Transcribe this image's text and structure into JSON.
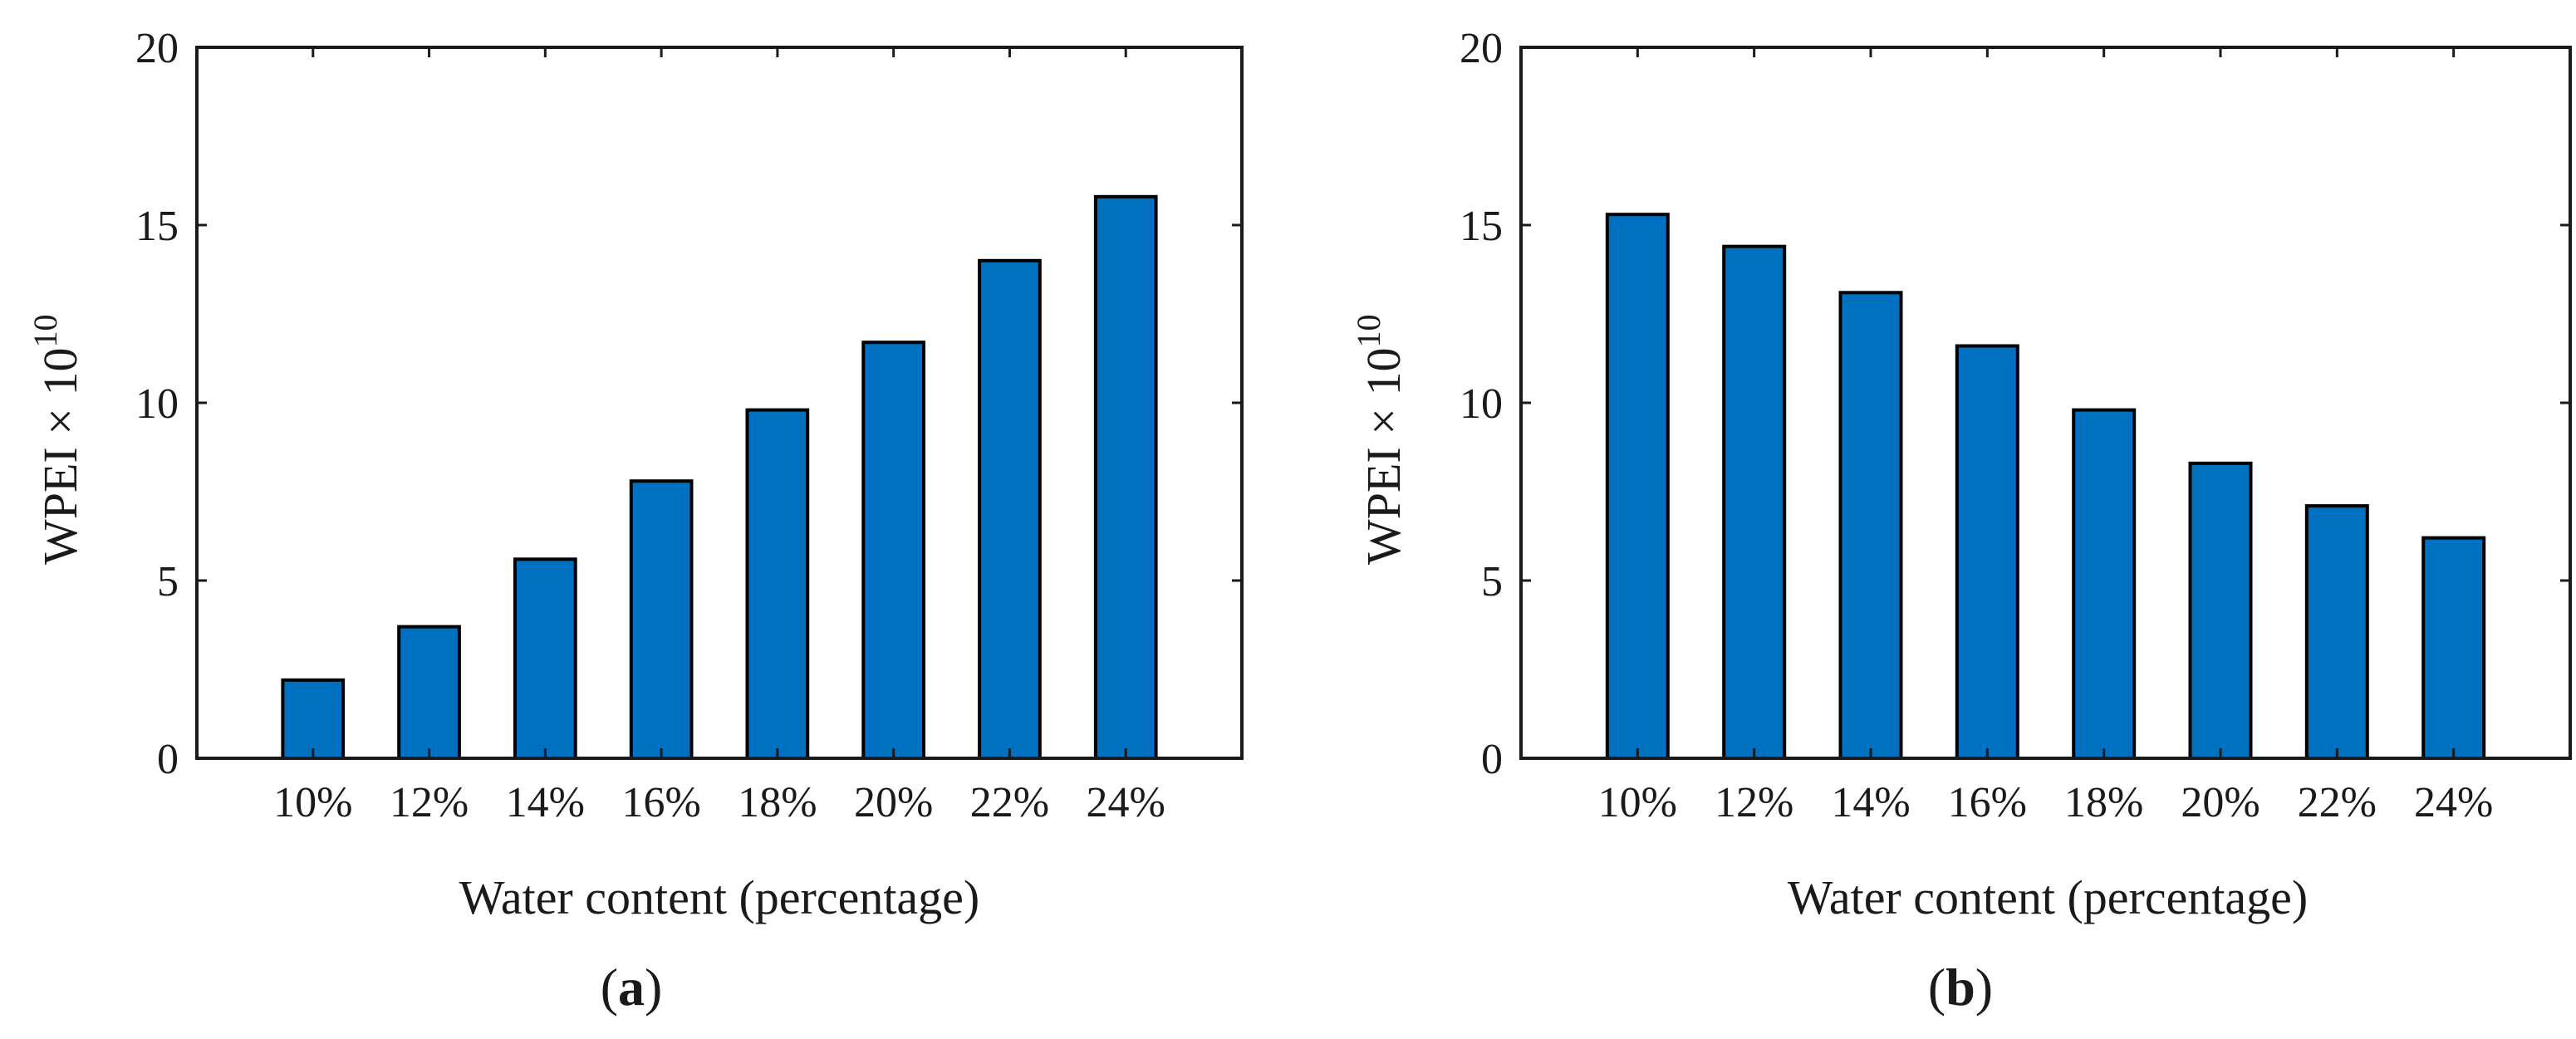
{
  "chart_data": [
    {
      "panel": "a",
      "type": "bar",
      "categories": [
        "10%",
        "12%",
        "14%",
        "16%",
        "18%",
        "20%",
        "22%",
        "24%"
      ],
      "values": [
        2.2,
        3.7,
        5.6,
        7.8,
        9.8,
        11.7,
        14.0,
        15.8
      ],
      "xlabel": "Water content (percentage)",
      "ylabel": "WPEI × 10",
      "ylabel_exponent": "10",
      "ylim": [
        0,
        20
      ],
      "yticks": [
        "0",
        "5",
        "10",
        "15",
        "20"
      ],
      "grid": false,
      "bar_color": "#0070C0",
      "label_prefix": "(",
      "label_letter": "a",
      "label_suffix": ")"
    },
    {
      "panel": "b",
      "type": "bar",
      "categories": [
        "10%",
        "12%",
        "14%",
        "16%",
        "18%",
        "20%",
        "22%",
        "24%"
      ],
      "values": [
        15.3,
        14.4,
        13.1,
        11.6,
        9.8,
        8.3,
        7.1,
        6.2
      ],
      "xlabel": "Water content (percentage)",
      "ylabel": "WPEI × 10",
      "ylabel_exponent": "10",
      "ylim": [
        0,
        20
      ],
      "yticks": [
        "0",
        "5",
        "10",
        "15",
        "20"
      ],
      "grid": false,
      "bar_color": "#0070C0",
      "label_prefix": "(",
      "label_letter": "b",
      "label_suffix": ")"
    }
  ]
}
